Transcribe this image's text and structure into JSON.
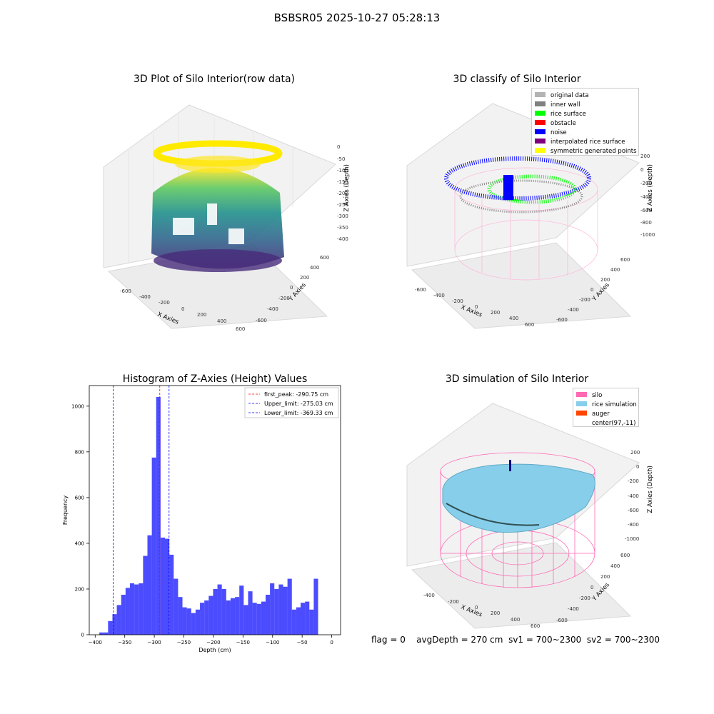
{
  "figure": {
    "title": "BSBSR05 2025-10-27 05:28:13",
    "footer": {
      "flag": "flag = 0",
      "avg_depth": "avgDepth = 270 cm",
      "sv1": "sv1 = 700~2300",
      "sv2": "sv2 = 700~2300"
    }
  },
  "panels": {
    "raw": {
      "title": "3D Plot of Silo Interior(row data)",
      "xlabel": "X Axies",
      "ylabel": "Y Axies",
      "zlabel": "Z Axies (Depth)",
      "xticks": [
        "-600",
        "-400",
        "-200",
        "0",
        "200",
        "400",
        "600"
      ],
      "yticks": [
        "600",
        "400",
        "200",
        "0",
        "-200",
        "-400",
        "-600"
      ],
      "zticks": [
        "0",
        "-50",
        "-100",
        "-150",
        "-200",
        "-250",
        "-300",
        "-350",
        "-400"
      ]
    },
    "classify": {
      "title": "3D classify of Silo Interior",
      "xlabel": "X Axies",
      "ylabel": "Y Axies",
      "zlabel": "Z Axies (Depth)",
      "xticks": [
        "-600",
        "-400",
        "-200",
        "0",
        "200",
        "400",
        "600"
      ],
      "yticks": [
        "600",
        "400",
        "200",
        "0",
        "-200",
        "-400",
        "-600"
      ],
      "zticks": [
        "200",
        "0",
        "-200",
        "-400",
        "-600",
        "-800",
        "-1000"
      ],
      "legend": [
        {
          "label": "original data",
          "color": "#b3b3b3"
        },
        {
          "label": "inner wall",
          "color": "#808080"
        },
        {
          "label": "rice surface",
          "color": "#00ff00"
        },
        {
          "label": "obstacle",
          "color": "#ff0000"
        },
        {
          "label": "noise",
          "color": "#0000ff"
        },
        {
          "label": "interpolated rice surface",
          "color": "#800080"
        },
        {
          "label": "symmetric generated points",
          "color": "#ffff00"
        }
      ]
    },
    "simulation": {
      "title": "3D simulation of Silo Interior",
      "xlabel": "X Axies",
      "ylabel": "Y Axies",
      "zlabel": "Z Axies (Depth)",
      "xticks": [
        "-400",
        "-200",
        "0",
        "200",
        "400",
        "600"
      ],
      "yticks": [
        "600",
        "400",
        "200",
        "0",
        "-200",
        "-400",
        "-600"
      ],
      "zticks": [
        "200",
        "0",
        "-200",
        "-400",
        "-600",
        "-800",
        "-1000"
      ],
      "legend": [
        {
          "label": "silo",
          "color": "#ff69b4"
        },
        {
          "label": "rice simulation",
          "color": "#87ceeb"
        },
        {
          "label": "auger",
          "color": "#ff4500"
        },
        {
          "label": "center(97,-11)",
          "color": "#ffffff"
        }
      ]
    }
  },
  "chart_data": {
    "type": "bar",
    "title": "Histogram of Z-Axies (Height) Values",
    "xlabel": "Depth (cm)",
    "ylabel": "Frequency",
    "xlim": [
      -410,
      15
    ],
    "ylim": [
      0,
      1090
    ],
    "xticks": [
      -400,
      -350,
      -300,
      -250,
      -200,
      -150,
      -100,
      -50,
      0
    ],
    "yticks": [
      0,
      200,
      400,
      600,
      800,
      1000
    ],
    "bin_start": -393,
    "bin_width": 7.4,
    "values": [
      10,
      10,
      60,
      90,
      130,
      175,
      205,
      225,
      220,
      225,
      345,
      435,
      775,
      1040,
      425,
      420,
      350,
      245,
      165,
      120,
      115,
      95,
      110,
      140,
      150,
      170,
      200,
      220,
      200,
      150,
      160,
      165,
      215,
      130,
      190,
      140,
      135,
      145,
      175,
      225,
      200,
      220,
      210,
      245,
      110,
      120,
      140,
      145,
      110,
      245
    ],
    "bar_color": "#0000ff",
    "vlines": [
      {
        "value": -290.75,
        "label": "first_peak: -290.75 cm",
        "color": "#ff0000"
      },
      {
        "value": -275.03,
        "label": "Upper_limit: -275.03 cm",
        "color": "#0000ff"
      },
      {
        "value": -369.33,
        "label": "Lower_limit: -369.33 cm",
        "color": "#0000ff"
      }
    ],
    "legend_position": "top-right"
  }
}
